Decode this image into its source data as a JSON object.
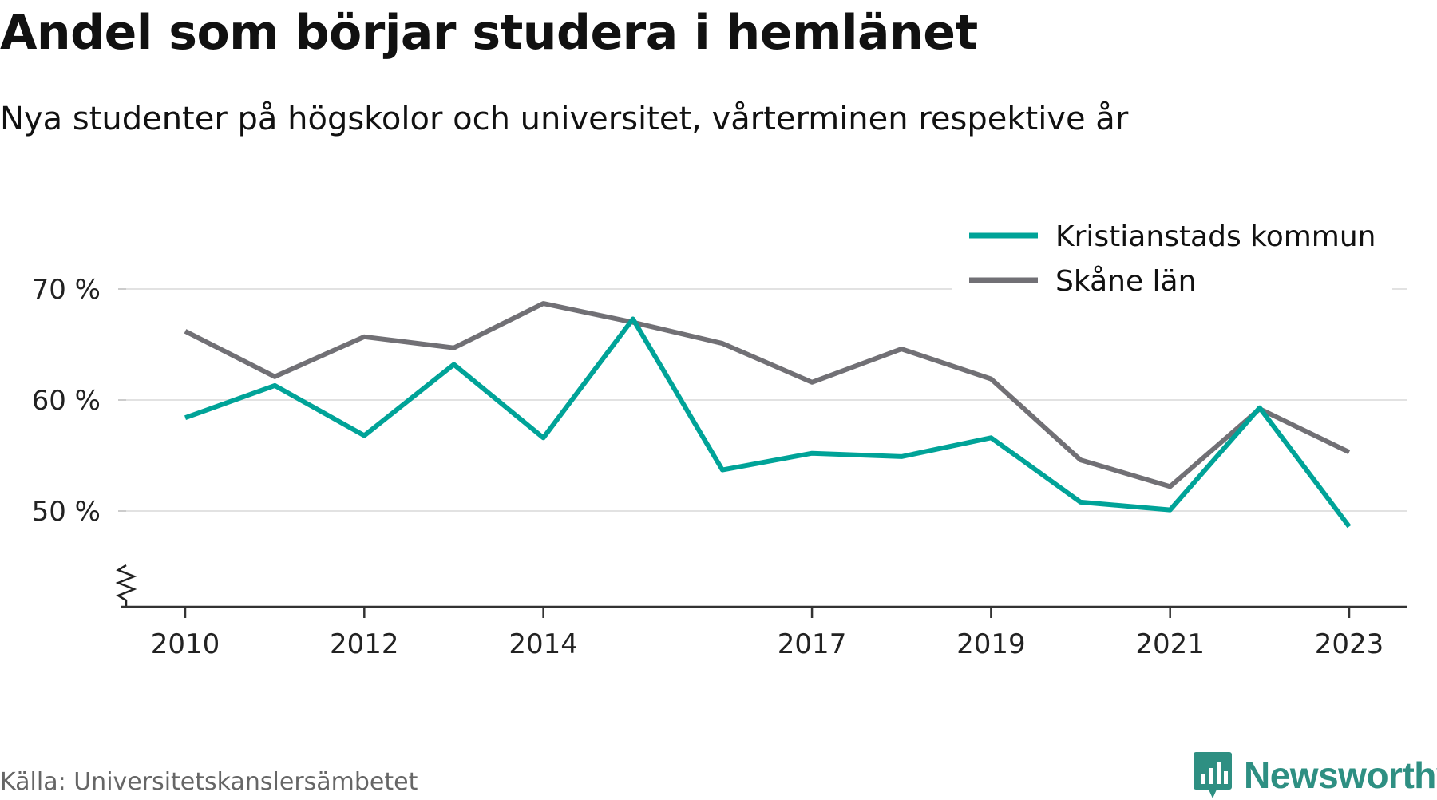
{
  "header": {
    "title": "Andel som börjar studera i hemlänet",
    "subtitle": "Nya studenter på högskolor och universitet, vårterminen respektive år"
  },
  "footer": {
    "source": "Källa: Universitetskanslersämbetet",
    "brand": "Newsworthy",
    "brand_icon": "bar-chart-speech-bubble-icon",
    "brand_color": "#2e8f82"
  },
  "chart_data": {
    "type": "line",
    "title": "Andel som börjar studera i hemlänet",
    "subtitle": "Nya studenter på högskolor och universitet, vårterminen respektive år",
    "x": [
      2010,
      2011,
      2012,
      2013,
      2014,
      2015,
      2016,
      2017,
      2018,
      2019,
      2020,
      2021,
      2022,
      2023
    ],
    "x_ticks": [
      2010,
      2012,
      2014,
      2017,
      2019,
      2021,
      2023
    ],
    "y_ticks": [
      50,
      60,
      70
    ],
    "y_tick_labels": [
      "50 %",
      "60 %",
      "70 %"
    ],
    "ylim": [
      41.5,
      73
    ],
    "y_axis_break": true,
    "grid": true,
    "legend_position": "top-right",
    "series": [
      {
        "name": "Kristianstads kommun",
        "color": "#00a398",
        "values": [
          58.4,
          61.3,
          56.8,
          63.2,
          56.6,
          67.3,
          53.7,
          55.2,
          54.9,
          56.6,
          50.8,
          50.1,
          59.3,
          48.6
        ]
      },
      {
        "name": "Skåne län",
        "color": "#717075",
        "values": [
          66.2,
          62.1,
          65.7,
          64.7,
          68.7,
          67.0,
          65.1,
          61.6,
          64.6,
          61.9,
          54.6,
          52.2,
          59.2,
          55.3
        ]
      }
    ]
  }
}
